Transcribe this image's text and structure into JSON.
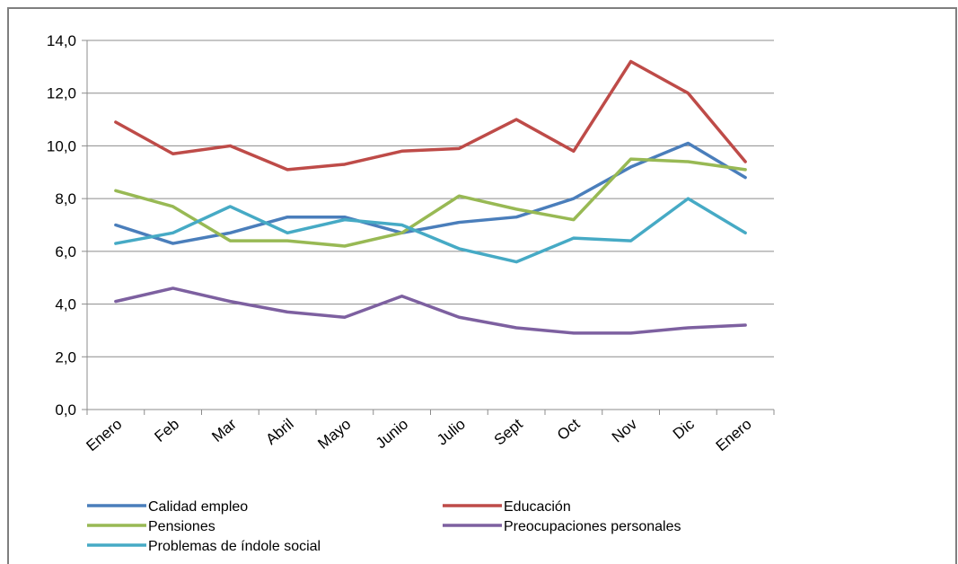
{
  "chart_data": {
    "type": "line",
    "categories": [
      "Enero",
      "Feb",
      "Mar",
      "Abril",
      "Mayo",
      "Junio",
      "Julio",
      "Sept",
      "Oct",
      "Nov",
      "Dic",
      "Enero"
    ],
    "ylim": [
      0,
      14
    ],
    "yticks": [
      "0,0",
      "2,0",
      "4,0",
      "6,0",
      "8,0",
      "10,0",
      "12,0",
      "14,0"
    ],
    "grid": true,
    "legend_position": "bottom",
    "series": [
      {
        "name": "Calidad empleo",
        "color": "#4a7ebb",
        "values": [
          7.0,
          6.3,
          6.7,
          7.3,
          7.3,
          6.7,
          7.1,
          7.3,
          8.0,
          9.2,
          10.1,
          8.8
        ]
      },
      {
        "name": "Educación",
        "color": "#be4b48",
        "values": [
          10.9,
          9.7,
          10.0,
          9.1,
          9.3,
          9.8,
          9.9,
          11.0,
          9.8,
          13.2,
          12.0,
          9.4
        ]
      },
      {
        "name": "Pensiones",
        "color": "#98b954",
        "values": [
          8.3,
          7.7,
          6.4,
          6.4,
          6.2,
          6.7,
          8.1,
          7.6,
          7.2,
          9.5,
          9.4,
          9.1
        ]
      },
      {
        "name": "Preocupaciones personales",
        "color": "#7d60a0",
        "values": [
          4.1,
          4.6,
          4.1,
          3.7,
          3.5,
          4.3,
          3.5,
          3.1,
          2.9,
          2.9,
          3.1,
          3.2
        ]
      },
      {
        "name": "Problemas de índole social",
        "color": "#46aac5",
        "values": [
          6.3,
          6.7,
          7.7,
          6.7,
          7.2,
          7.0,
          6.1,
          5.6,
          6.5,
          6.4,
          8.0,
          6.7
        ]
      }
    ]
  }
}
